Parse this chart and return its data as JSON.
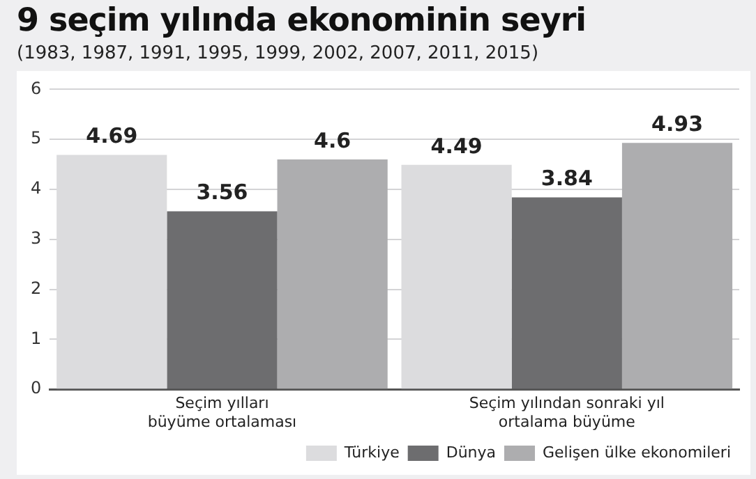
{
  "chart_data": {
    "type": "bar",
    "title": "9 seçim yılında ekonominin seyri",
    "subtitle": "(1983, 1987, 1991, 1995, 1999, 2002, 2007, 2011, 2015)",
    "categories": [
      "Seçim yılları\nbüyüme ortalaması",
      "Seçim yılından sonraki yıl\nortalama büyüme"
    ],
    "series": [
      {
        "name": "Türkiye",
        "color": "#dcdcde",
        "values": [
          4.69,
          4.49
        ]
      },
      {
        "name": "Dünya",
        "color": "#6d6d6f",
        "values": [
          3.56,
          3.84
        ]
      },
      {
        "name": "Gelişen ülke ekonomileri",
        "color": "#adadaf",
        "values": [
          4.6,
          4.93
        ]
      }
    ],
    "ylim": [
      0,
      6
    ],
    "yticks": [
      0,
      1,
      2,
      3,
      4,
      5,
      6
    ],
    "grid": "y",
    "legend": "bottom right",
    "data_labels": true
  }
}
